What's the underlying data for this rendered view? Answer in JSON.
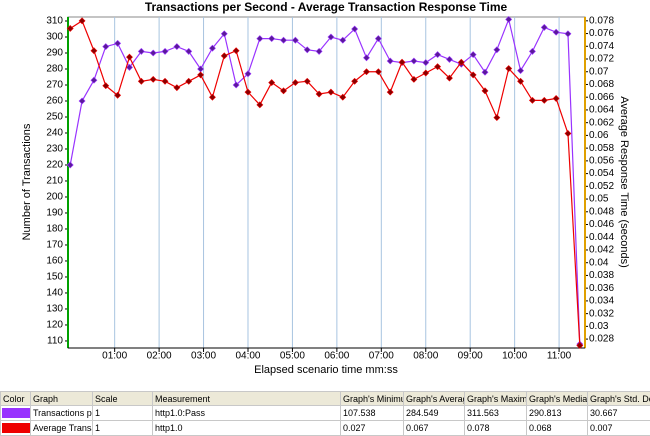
{
  "chart_data": {
    "type": "line",
    "title": "Transactions per Second - Average Transaction Response Time",
    "xlabel": "Elapsed scenario time mm:ss",
    "ylabel": "Number of Transactions",
    "y2label": "Average Response Time (seconds)",
    "x": [
      0,
      16,
      32,
      48,
      64,
      80,
      96,
      112,
      128,
      144,
      160,
      176,
      192,
      208,
      224,
      240,
      256,
      272,
      288,
      304,
      320,
      336,
      352,
      368,
      384,
      400,
      416,
      432,
      448,
      464,
      480,
      496,
      512,
      528,
      544,
      560,
      576,
      592,
      608,
      624,
      640,
      656,
      672,
      688
    ],
    "series": [
      {
        "color": "#9933ff",
        "marker_color": "#5a1a99",
        "values": [
          220,
          260,
          273,
          294,
          296,
          281,
          291,
          290,
          291,
          294,
          291,
          280,
          293,
          302,
          270,
          277,
          299,
          299,
          298,
          298,
          292,
          291,
          300,
          298,
          305,
          287,
          299,
          285,
          284,
          285,
          284,
          289,
          286,
          283,
          289,
          278,
          292,
          311,
          279,
          291,
          306,
          303,
          302,
          108
        ]
      },
      {
        "color": "#ee0000",
        "marker_color": "#880000",
        "axis": "y2",
        "values": [
          0.0768,
          0.078,
          0.0733,
          0.0678,
          0.0663,
          0.0723,
          0.0685,
          0.0688,
          0.0685,
          0.0675,
          0.0685,
          0.0695,
          0.066,
          0.0725,
          0.0733,
          0.0668,
          0.0648,
          0.0683,
          0.067,
          0.0683,
          0.0685,
          0.0665,
          0.0668,
          0.066,
          0.0685,
          0.07,
          0.07,
          0.0668,
          0.0715,
          0.0688,
          0.0698,
          0.0708,
          0.069,
          0.0715,
          0.0695,
          0.067,
          0.0628,
          0.0705,
          0.0685,
          0.0655,
          0.0655,
          0.0658,
          0.0603,
          0.027
        ]
      }
    ],
    "xlim": [
      -3,
      695
    ],
    "xticks": [
      {
        "value": 60,
        "label": "01:00"
      },
      {
        "value": 120,
        "label": "02:00"
      },
      {
        "value": 180,
        "label": "03:00"
      },
      {
        "value": 240,
        "label": "04:00"
      },
      {
        "value": 300,
        "label": "05:00"
      },
      {
        "value": 360,
        "label": "06:00"
      },
      {
        "value": 420,
        "label": "07:00"
      },
      {
        "value": 480,
        "label": "08:00"
      },
      {
        "value": 540,
        "label": "09:00"
      },
      {
        "value": 600,
        "label": "10:00"
      },
      {
        "value": 660,
        "label": "11:00"
      }
    ],
    "ylim": [
      105.6,
      312.5
    ],
    "yticks": [
      110,
      120,
      130,
      140,
      150,
      160,
      170,
      180,
      190,
      200,
      210,
      220,
      230,
      240,
      250,
      260,
      270,
      280,
      290,
      300,
      310
    ],
    "y2lim": [
      0.0266,
      0.0786
    ],
    "y2ticks": [
      0.028,
      0.03,
      0.032,
      0.034,
      0.036,
      0.038,
      0.04,
      0.042,
      0.044,
      0.046,
      0.048,
      0.05,
      0.052,
      0.054,
      0.056,
      0.058,
      0.06,
      0.062,
      0.064,
      0.066,
      0.068,
      0.07,
      0.072,
      0.074,
      0.076,
      0.078
    ],
    "grid": "x"
  },
  "legend_table": {
    "header": [
      "Color",
      "Graph",
      "Scale",
      "Measurement",
      "Graph's Minimum",
      "Graph's Average",
      "Graph's Maximum",
      "Graph's Median",
      "Graph's Std. Dev"
    ],
    "rows": [
      [
        "Transactions per",
        "1",
        "http1.0:Pass",
        "107.538",
        "284.549",
        "311.563",
        "290.813",
        "30.667"
      ],
      [
        "Average Transac",
        "1",
        "http1.0",
        "0.027",
        "0.067",
        "0.078",
        "0.068",
        "0.007"
      ]
    ]
  }
}
